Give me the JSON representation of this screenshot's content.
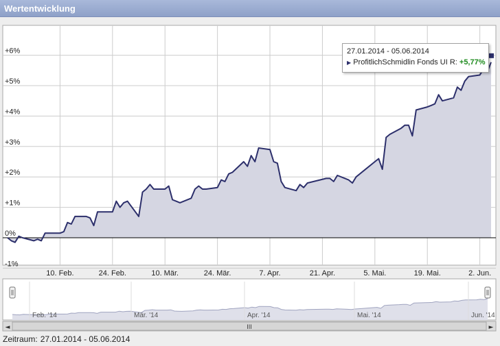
{
  "panel": {
    "title": "Wertentwicklung"
  },
  "tooltip": {
    "range": "27.01.2014 - 05.06.2014",
    "series_label": "ProfitlichSchmidlin Fonds UI R:",
    "value": "+5,77%"
  },
  "footer": {
    "label": "Zeitraum:",
    "value": "27.01.2014 - 05.06.2014"
  },
  "navigator": {
    "labels": [
      "Feb. '14",
      "Mär. '14",
      "Apr. '14",
      "Mai. '14",
      "Jun. '14"
    ],
    "scroll_left": "◄",
    "scroll_right": "►",
    "grip": "III"
  },
  "colors": {
    "line": "#2c2f6b",
    "area": "#d5d6e2",
    "grid": "#cccccc",
    "zero_line": "#000000"
  },
  "chart_data": {
    "type": "area",
    "series": [
      {
        "name": "ProfitlichSchmidlin Fonds UI R"
      }
    ],
    "x_tick_labels": [
      "10. Feb.",
      "24. Feb.",
      "10. Mär.",
      "24. Mär.",
      "7. Apr.",
      "21. Apr.",
      "5. Mai.",
      "19. Mai.",
      "2. Jun."
    ],
    "x_tick_dates": [
      "2014-02-10",
      "2014-02-24",
      "2014-03-10",
      "2014-03-24",
      "2014-04-07",
      "2014-04-21",
      "2014-05-05",
      "2014-05-19",
      "2014-06-02"
    ],
    "y_tick_labels": [
      "-1%",
      "0%",
      "+1%",
      "+2%",
      "+3%",
      "+4%",
      "+5%",
      "+6%"
    ],
    "y_tick_values": [
      -1,
      0,
      1,
      2,
      3,
      4,
      5,
      6
    ],
    "xlim": [
      "2014-01-27",
      "2014-06-05"
    ],
    "ylim": [
      -1,
      7
    ],
    "grid": true,
    "points": [
      [
        "2014-01-27",
        0.0
      ],
      [
        "2014-01-28",
        -0.1
      ],
      [
        "2014-01-29",
        -0.15
      ],
      [
        "2014-01-30",
        0.05
      ],
      [
        "2014-01-31",
        0.0
      ],
      [
        "2014-02-03",
        -0.1
      ],
      [
        "2014-02-04",
        -0.05
      ],
      [
        "2014-02-05",
        -0.1
      ],
      [
        "2014-02-06",
        0.15
      ],
      [
        "2014-02-07",
        0.15
      ],
      [
        "2014-02-10",
        0.15
      ],
      [
        "2014-02-11",
        0.2
      ],
      [
        "2014-02-12",
        0.5
      ],
      [
        "2014-02-13",
        0.45
      ],
      [
        "2014-02-14",
        0.7
      ],
      [
        "2014-02-17",
        0.7
      ],
      [
        "2014-02-18",
        0.65
      ],
      [
        "2014-02-19",
        0.4
      ],
      [
        "2014-02-20",
        0.85
      ],
      [
        "2014-02-21",
        0.85
      ],
      [
        "2014-02-24",
        0.85
      ],
      [
        "2014-02-25",
        1.2
      ],
      [
        "2014-02-26",
        1.0
      ],
      [
        "2014-02-27",
        1.15
      ],
      [
        "2014-02-28",
        1.2
      ],
      [
        "2014-03-03",
        0.7
      ],
      [
        "2014-03-04",
        1.5
      ],
      [
        "2014-03-05",
        1.6
      ],
      [
        "2014-03-06",
        1.75
      ],
      [
        "2014-03-07",
        1.6
      ],
      [
        "2014-03-10",
        1.6
      ],
      [
        "2014-03-11",
        1.7
      ],
      [
        "2014-03-12",
        1.25
      ],
      [
        "2014-03-13",
        1.2
      ],
      [
        "2014-03-14",
        1.15
      ],
      [
        "2014-03-17",
        1.3
      ],
      [
        "2014-03-18",
        1.6
      ],
      [
        "2014-03-19",
        1.7
      ],
      [
        "2014-03-20",
        1.6
      ],
      [
        "2014-03-21",
        1.6
      ],
      [
        "2014-03-24",
        1.65
      ],
      [
        "2014-03-25",
        1.9
      ],
      [
        "2014-03-26",
        1.85
      ],
      [
        "2014-03-27",
        2.1
      ],
      [
        "2014-03-28",
        2.15
      ],
      [
        "2014-03-31",
        2.5
      ],
      [
        "2014-04-01",
        2.35
      ],
      [
        "2014-04-02",
        2.7
      ],
      [
        "2014-04-03",
        2.5
      ],
      [
        "2014-04-04",
        2.95
      ],
      [
        "2014-04-07",
        2.9
      ],
      [
        "2014-04-08",
        2.5
      ],
      [
        "2014-04-09",
        2.45
      ],
      [
        "2014-04-10",
        1.85
      ],
      [
        "2014-04-11",
        1.65
      ],
      [
        "2014-04-14",
        1.55
      ],
      [
        "2014-04-15",
        1.75
      ],
      [
        "2014-04-16",
        1.65
      ],
      [
        "2014-04-17",
        1.8
      ],
      [
        "2014-04-22",
        1.95
      ],
      [
        "2014-04-23",
        1.95
      ],
      [
        "2014-04-24",
        1.85
      ],
      [
        "2014-04-25",
        2.05
      ],
      [
        "2014-04-28",
        1.9
      ],
      [
        "2014-04-29",
        1.8
      ],
      [
        "2014-04-30",
        2.0
      ],
      [
        "2014-05-02",
        2.2
      ],
      [
        "2014-05-05",
        2.5
      ],
      [
        "2014-05-06",
        2.6
      ],
      [
        "2014-05-07",
        2.25
      ],
      [
        "2014-05-08",
        3.3
      ],
      [
        "2014-05-09",
        3.4
      ],
      [
        "2014-05-12",
        3.6
      ],
      [
        "2014-05-13",
        3.7
      ],
      [
        "2014-05-14",
        3.7
      ],
      [
        "2014-05-15",
        3.35
      ],
      [
        "2014-05-16",
        4.2
      ],
      [
        "2014-05-19",
        4.3
      ],
      [
        "2014-05-20",
        4.35
      ],
      [
        "2014-05-21",
        4.4
      ],
      [
        "2014-05-22",
        4.7
      ],
      [
        "2014-05-23",
        4.5
      ],
      [
        "2014-05-26",
        4.6
      ],
      [
        "2014-05-27",
        4.95
      ],
      [
        "2014-05-28",
        4.85
      ],
      [
        "2014-05-29",
        5.15
      ],
      [
        "2014-05-30",
        5.3
      ],
      [
        "2014-06-02",
        5.35
      ],
      [
        "2014-06-03",
        5.55
      ],
      [
        "2014-06-04",
        5.45
      ],
      [
        "2014-06-05",
        5.77
      ]
    ]
  }
}
